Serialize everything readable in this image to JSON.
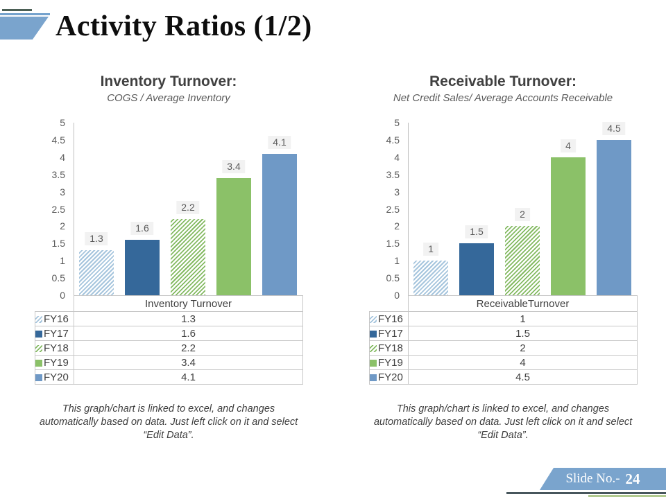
{
  "slide": {
    "title": "Activity Ratios (1/2)",
    "footer": {
      "label": "Slide No.-",
      "number": "24"
    }
  },
  "colors": {
    "accent_blue": "#7aa4cd",
    "header_dark_line": "#4b5f55",
    "footer_line_dark": "#47565c",
    "footer_line_green": "#b2cb90",
    "bar_hatch_blue": "#a6c5dd",
    "bar_solid_darkblue": "#35689a",
    "bar_hatch_green": "#84ba62",
    "bar_solid_green": "#8bc168",
    "bar_solid_blue": "#6f99c6",
    "label_bg": "#f2f2f2",
    "axis_text": "#595959",
    "table_text": "#404040",
    "table_border": "#c6c6c6"
  },
  "panels": [
    {
      "footnote_lines": [
        "This graph/chart is linked to excel, and changes",
        "automatically based on data. Just left click on it and select",
        "“Edit Data”."
      ]
    },
    {
      "footnote_lines": [
        "This graph/chart is linked to excel, and changes",
        "automatically based on data. Just left click on it and select",
        "“Edit Data”."
      ]
    }
  ],
  "chart_data": [
    {
      "type": "bar",
      "title": "Inventory Turnover:",
      "subtitle": "COGS / Average Inventory",
      "categories": [
        "FY16",
        "FY17",
        "FY18",
        "FY19",
        "FY20"
      ],
      "values": [
        1.3,
        1.6,
        2.2,
        3.4,
        4.1
      ],
      "value_labels": [
        "1.3",
        "1.6",
        "2.2",
        "3.4",
        "4.1"
      ],
      "series_styles": [
        "hatch-blue",
        "solid-darkblue",
        "hatch-green",
        "solid-green",
        "solid-blue"
      ],
      "table_header": "Inventory Turnover",
      "xlabel": "",
      "ylabel": "",
      "ylim": [
        0,
        5
      ],
      "ytick_step": 0.5,
      "grid": false,
      "legend_position": "table-rows-left"
    },
    {
      "type": "bar",
      "title": "Receivable Turnover:",
      "subtitle": "Net Credit Sales/ Average Accounts Receivable",
      "categories": [
        "FY16",
        "FY17",
        "FY18",
        "FY19",
        "FY20"
      ],
      "values": [
        1,
        1.5,
        2,
        4,
        4.5
      ],
      "value_labels": [
        "1",
        "1.5",
        "2",
        "4",
        "4.5"
      ],
      "series_styles": [
        "hatch-blue",
        "solid-darkblue",
        "hatch-green",
        "solid-green",
        "solid-blue"
      ],
      "table_header": "ReceivableTurnover",
      "xlabel": "",
      "ylabel": "",
      "ylim": [
        0,
        5
      ],
      "ytick_step": 0.5,
      "grid": false,
      "legend_position": "table-rows-left"
    }
  ]
}
